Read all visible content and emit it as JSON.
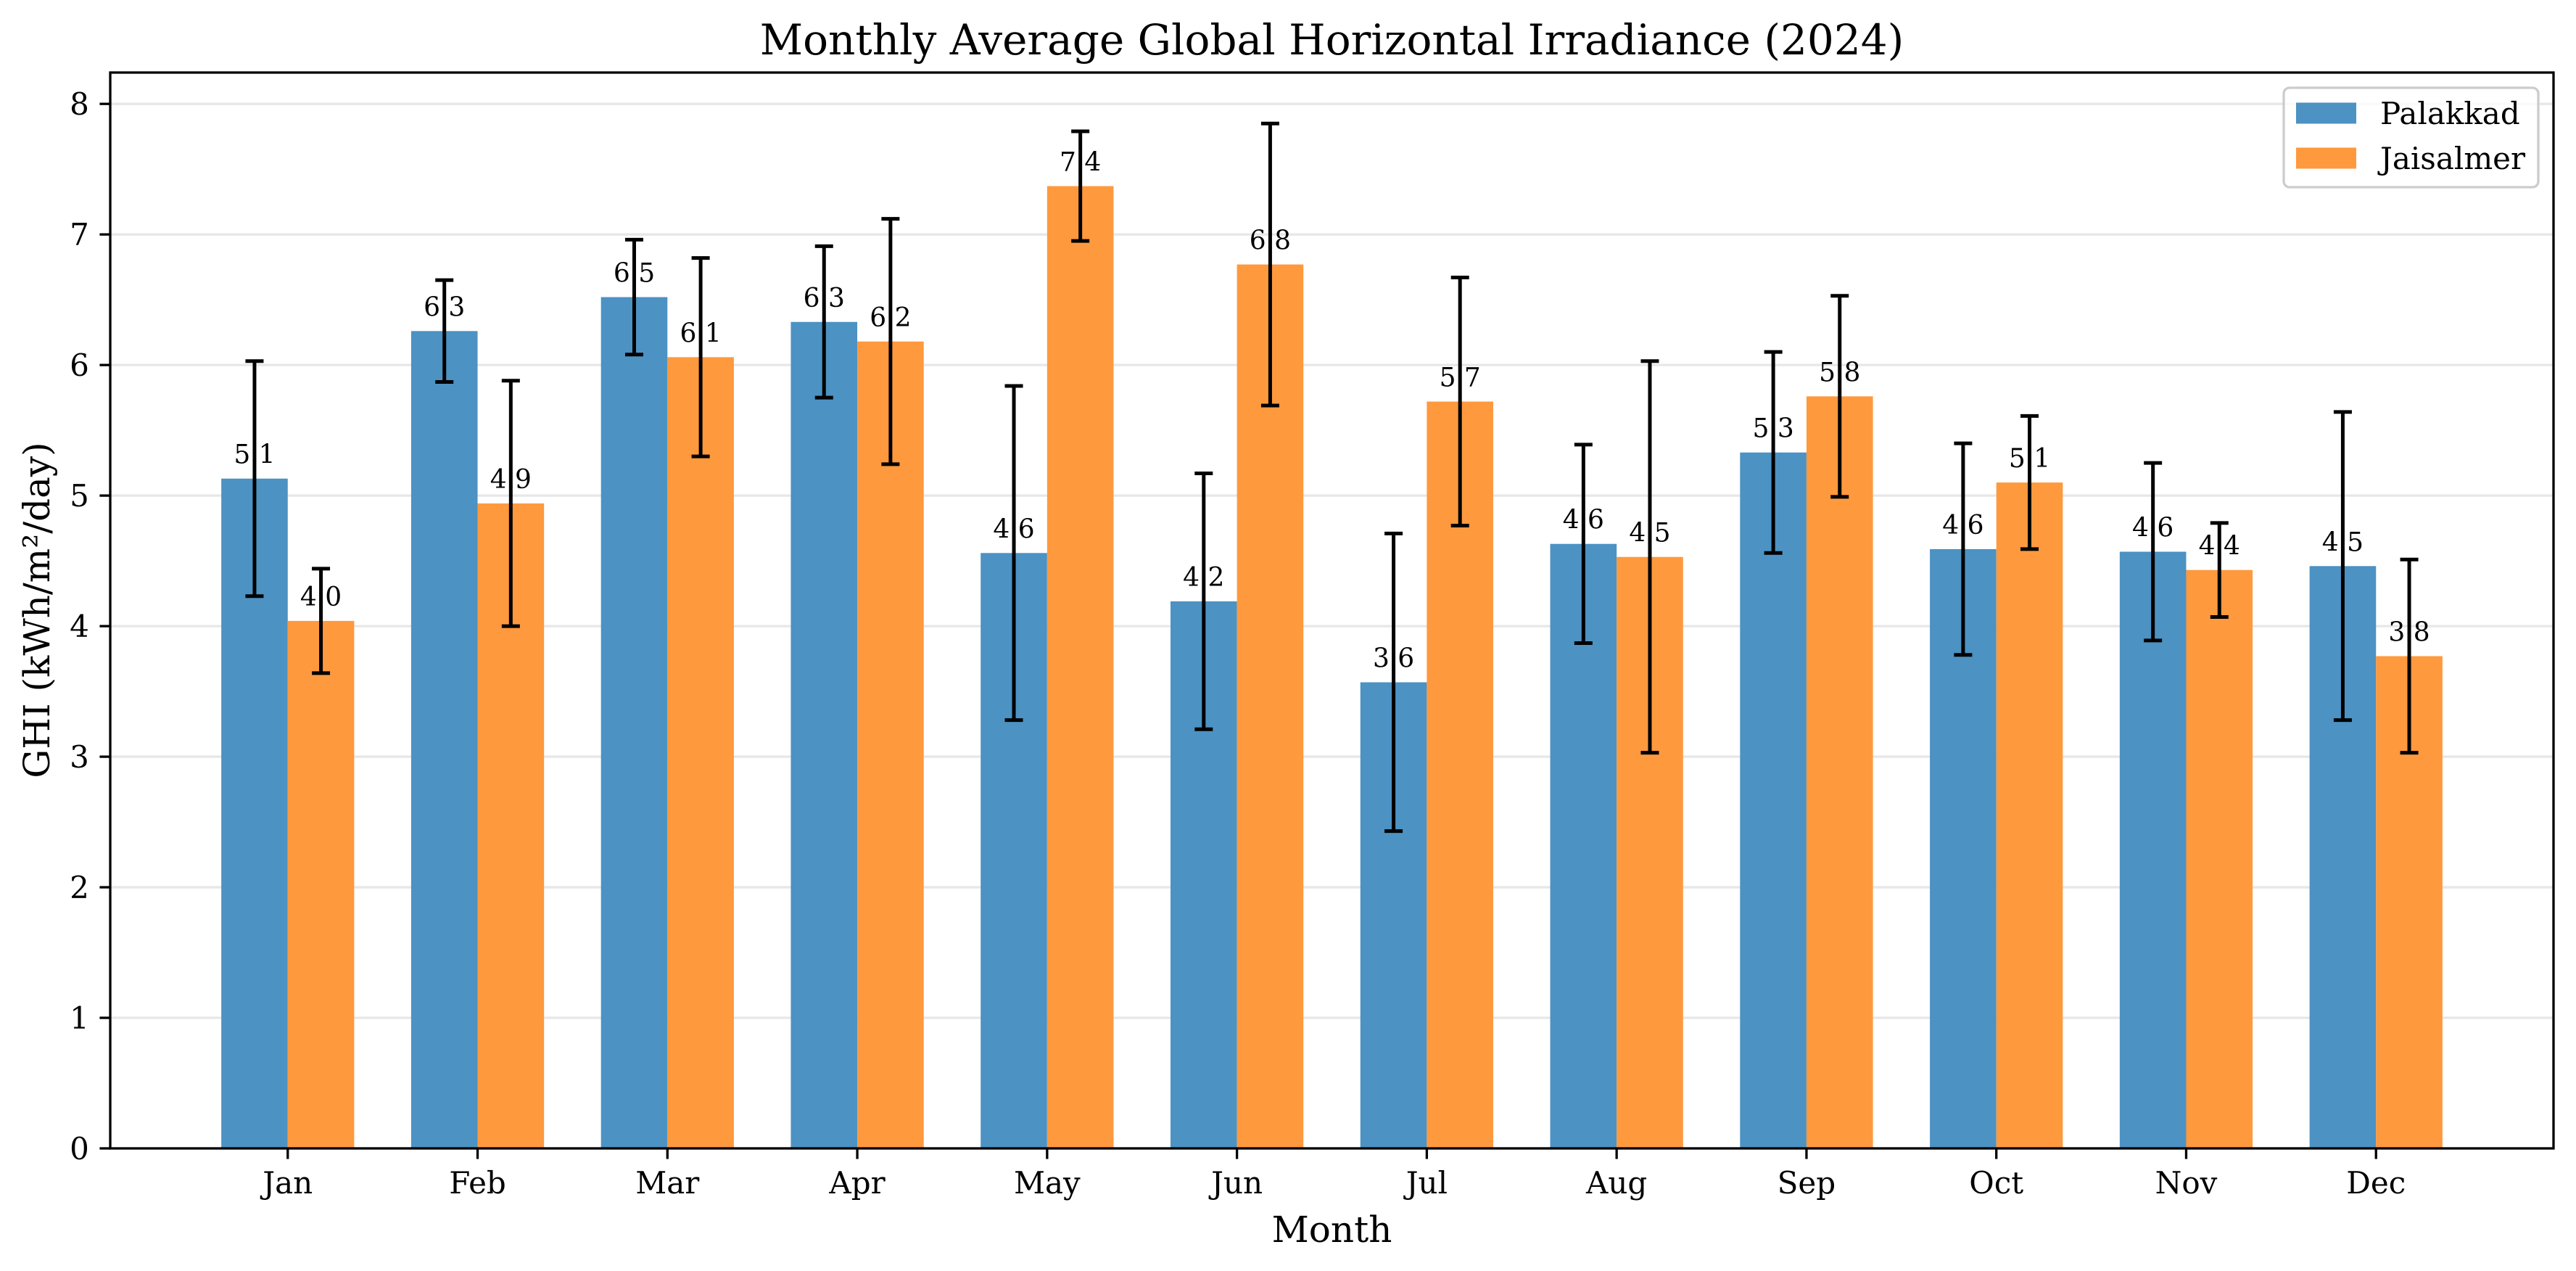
{
  "chart_data": {
    "type": "bar",
    "title": "Monthly Average Global Horizontal Irradiance (2024)",
    "xlabel": "Month",
    "ylabel": "GHI (kWh/m²/day)",
    "categories": [
      "Jan",
      "Feb",
      "Mar",
      "Apr",
      "May",
      "Jun",
      "Jul",
      "Aug",
      "Sep",
      "Oct",
      "Nov",
      "Dec"
    ],
    "ylim": [
      0,
      8.24
    ],
    "yticks": [
      0,
      1,
      2,
      3,
      4,
      5,
      6,
      7,
      8
    ],
    "grid": "y-axis",
    "legend": "top-right",
    "series": [
      {
        "name": "Palakkad",
        "color": "#4c92c3",
        "values": [
          5.13,
          6.26,
          6.52,
          6.33,
          4.56,
          4.19,
          3.57,
          4.63,
          5.33,
          4.59,
          4.57,
          4.46
        ],
        "errors": [
          0.9,
          0.39,
          0.44,
          0.58,
          1.28,
          0.98,
          1.14,
          0.76,
          0.77,
          0.81,
          0.68,
          1.18
        ],
        "labels": [
          "5.1",
          "6.3",
          "6.5",
          "6.3",
          "4.6",
          "4.2",
          "3.6",
          "4.6",
          "5.3",
          "4.6",
          "4.6",
          "4.5"
        ]
      },
      {
        "name": "Jaisalmer",
        "color": "#ff993e",
        "values": [
          4.04,
          4.94,
          6.06,
          6.18,
          7.37,
          6.77,
          5.72,
          4.53,
          5.76,
          5.1,
          4.43,
          3.77
        ],
        "errors": [
          0.4,
          0.94,
          0.76,
          0.94,
          0.42,
          1.08,
          0.95,
          1.5,
          0.77,
          0.51,
          0.36,
          0.74
        ],
        "labels": [
          "4.0",
          "4.9",
          "6.1",
          "6.2",
          "7.4",
          "6.8",
          "5.7",
          "4.5",
          "5.8",
          "5.1",
          "4.4",
          "3.8"
        ]
      }
    ]
  }
}
